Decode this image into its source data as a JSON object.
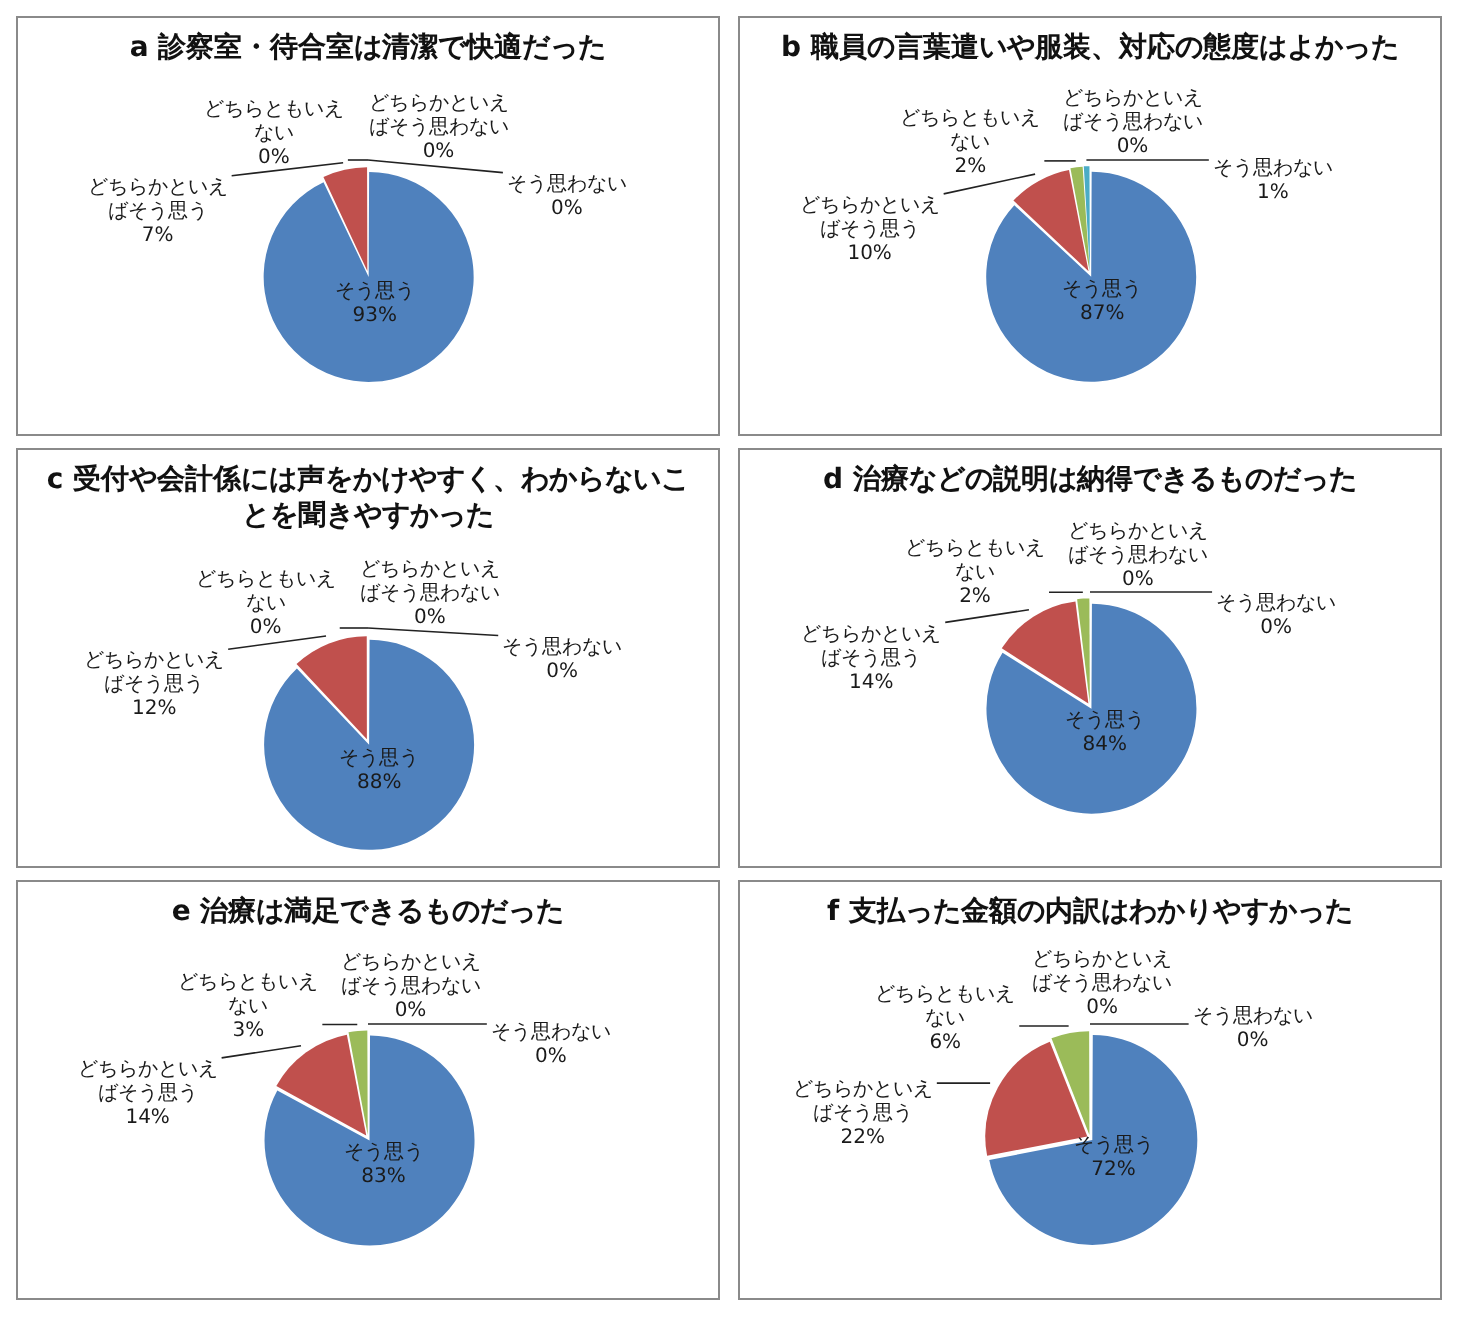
{
  "chart_data": [
    {
      "type": "pie",
      "title": "a 診察室・待合室は清潔で快適だった",
      "categories": [
        "そう思う",
        "どちらかといえばそう思う",
        "どちらともいえない",
        "どちらかといえばそう思わない",
        "そう思わない"
      ],
      "values": [
        93,
        7,
        0,
        0,
        0
      ],
      "value_labels": [
        "93%",
        "7%",
        "0%",
        "0%",
        "0%"
      ],
      "colors": [
        "#4f81bd",
        "#c0504d",
        "#9bbb59",
        "#8064a2",
        "#4bacc6"
      ]
    },
    {
      "type": "pie",
      "title": "b 職員の言葉遣いや服装、対応の態度はよかった",
      "categories": [
        "そう思う",
        "どちらかといえばそう思う",
        "どちらともいえない",
        "どちらかといえばそう思わない",
        "そう思わない"
      ],
      "values": [
        87,
        10,
        2,
        0,
        1
      ],
      "value_labels": [
        "87%",
        "10%",
        "2%",
        "0%",
        "1%"
      ],
      "colors": [
        "#4f81bd",
        "#c0504d",
        "#9bbb59",
        "#8064a2",
        "#4bacc6"
      ]
    },
    {
      "type": "pie",
      "title": "c 受付や会計係には声をかけやすく、わからないことを聞きやすかった",
      "categories": [
        "そう思う",
        "どちらかといえばそう思う",
        "どちらともいえない",
        "どちらかといえばそう思わない",
        "そう思わない"
      ],
      "values": [
        88,
        12,
        0,
        0,
        0
      ],
      "value_labels": [
        "88%",
        "12%",
        "0%",
        "0%",
        "0%"
      ],
      "colors": [
        "#4f81bd",
        "#c0504d",
        "#9bbb59",
        "#8064a2",
        "#4bacc6"
      ]
    },
    {
      "type": "pie",
      "title": "d 治療などの説明は納得できるものだった",
      "categories": [
        "そう思う",
        "どちらかといえばそう思う",
        "どちらともいえない",
        "どちらかといえばそう思わない",
        "そう思わない"
      ],
      "values": [
        84,
        14,
        2,
        0,
        0
      ],
      "value_labels": [
        "84%",
        "14%",
        "2%",
        "0%",
        "0%"
      ],
      "colors": [
        "#4f81bd",
        "#c0504d",
        "#9bbb59",
        "#8064a2",
        "#4bacc6"
      ]
    },
    {
      "type": "pie",
      "title": "e 治療は満足できるものだった",
      "categories": [
        "そう思う",
        "どちらかといえばそう思う",
        "どちらともいえない",
        "どちらかといえばそう思わない",
        "そう思わない"
      ],
      "values": [
        83,
        14,
        3,
        0,
        0
      ],
      "value_labels": [
        "83%",
        "14%",
        "3%",
        "0%",
        "0%"
      ],
      "colors": [
        "#4f81bd",
        "#c0504d",
        "#9bbb59",
        "#8064a2",
        "#4bacc6"
      ]
    },
    {
      "type": "pie",
      "title": "f 支払った金額の内訳はわかりやすかった",
      "categories": [
        "そう思う",
        "どちらかといえばそう思う",
        "どちらともいえない",
        "どちらかといえばそう思わない",
        "そう思わない"
      ],
      "values": [
        72,
        22,
        6,
        0,
        0
      ],
      "value_labels": [
        "72%",
        "22%",
        "6%",
        "0%",
        "0%"
      ],
      "colors": [
        "#4f81bd",
        "#c0504d",
        "#9bbb59",
        "#8064a2",
        "#4bacc6"
      ]
    }
  ]
}
